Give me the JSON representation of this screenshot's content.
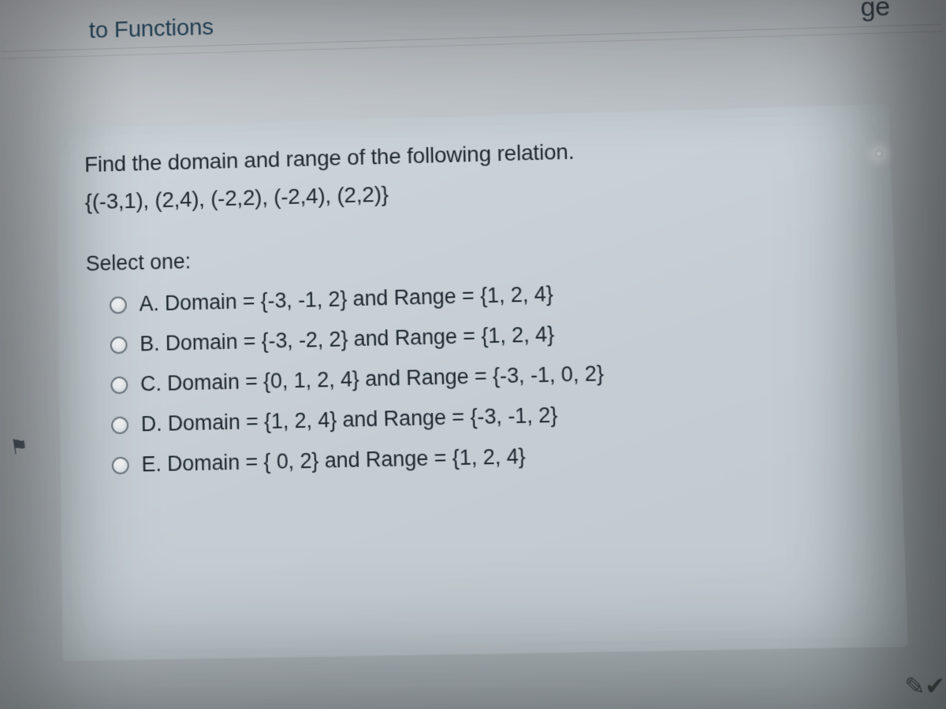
{
  "colors": {
    "page_bg_from": "#d0d4d8",
    "page_bg_to": "#a8b1b5",
    "card_bg": "#d0dbe0",
    "text": "#222a30",
    "radio_border": "#6d7780"
  },
  "breadcrumb": {
    "tail_fragment": "to Functions",
    "right_fragment": "ge"
  },
  "question": {
    "prompt": "Find the domain and range of the following relation.",
    "relation": "{(-3,1), (2,4), (-2,2), (-2,4), (2,2)}",
    "select_label": "Select one:"
  },
  "options": [
    {
      "key": "A",
      "label": "A. Domain = {-3, -1, 2} and Range = {1, 2, 4}",
      "selected": false
    },
    {
      "key": "B",
      "label": "B. Domain = {-3, -2, 2} and Range = {1, 2, 4}",
      "selected": false
    },
    {
      "key": "C",
      "label": "C. Domain = {0, 1, 2, 4} and Range = {-3, -1, 0, 2}",
      "selected": false
    },
    {
      "key": "D",
      "label": "D. Domain = {1, 2, 4} and Range = {-3, -1, 2}",
      "selected": false
    },
    {
      "key": "E",
      "label": "E. Domain = { 0, 2} and Range = {1, 2, 4}",
      "selected": false
    }
  ],
  "flag_icon": "⚑",
  "corner_glyph": "✎✔"
}
